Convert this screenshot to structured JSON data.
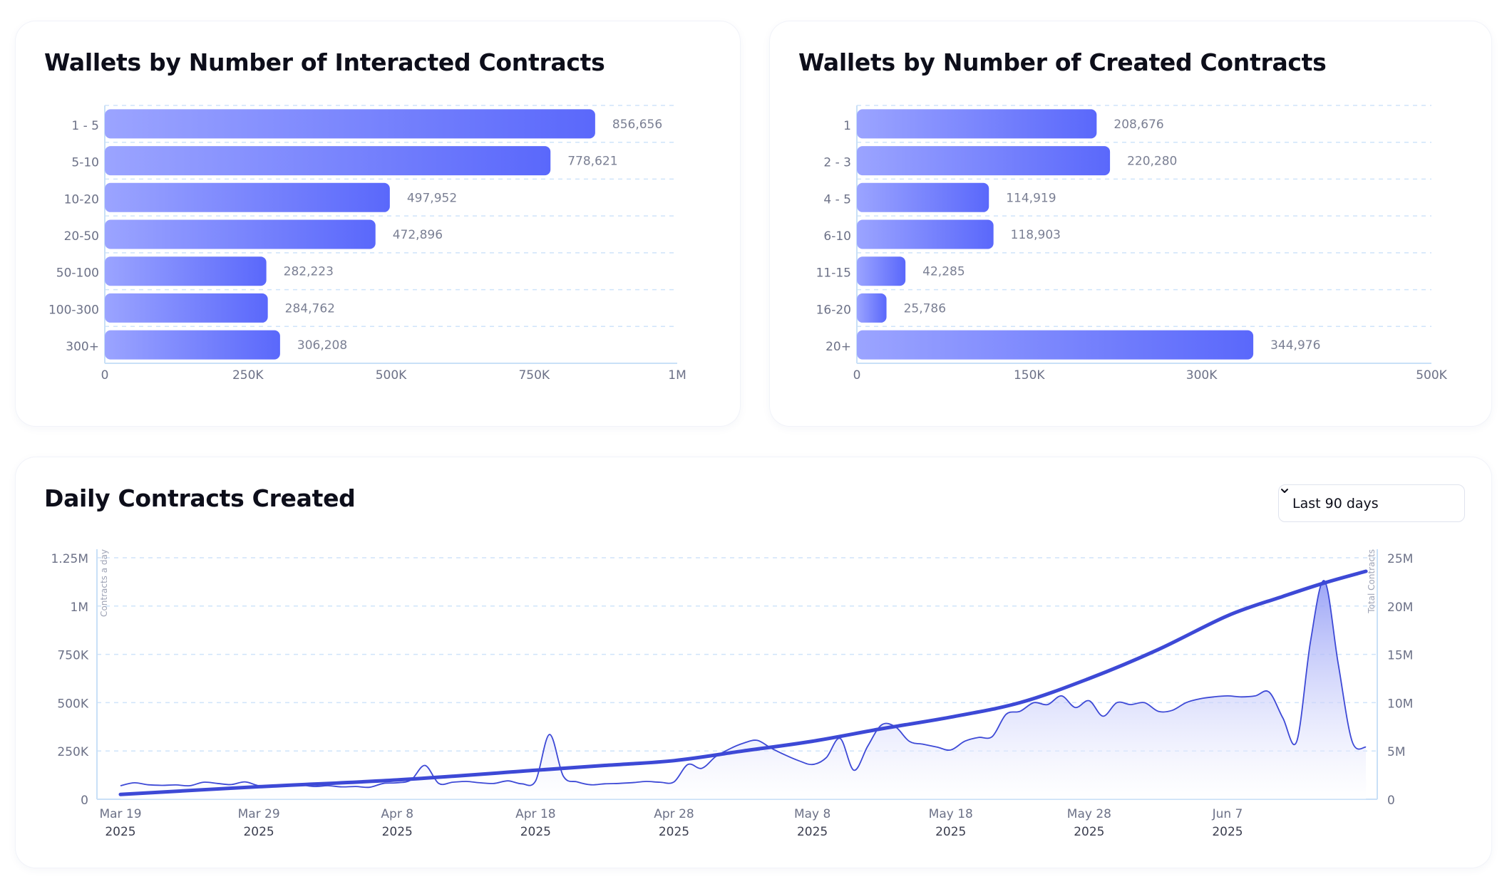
{
  "colors": {
    "bar_start": "#9ba4ff",
    "bar_end": "#5a68fb",
    "line": "#3d49d6",
    "area_top": "#8b95f5",
    "grid": "#cfe4fa",
    "axis": "#c9e0f7",
    "tick_text": "#6c7187",
    "value_text": "#7a7f93",
    "title_text": "#0d0e1a"
  },
  "time_range": {
    "selected": "Last 90 days",
    "icon": "chevron-down-icon"
  },
  "chart_data": [
    {
      "id": "interacted",
      "type": "bar",
      "orientation": "horizontal",
      "title": "Wallets by Number of Interacted Contracts",
      "categories": [
        "1 - 5",
        "5-10",
        "10-20",
        "20-50",
        "50-100",
        "100-300",
        "300+"
      ],
      "values": [
        856656,
        778621,
        497952,
        472896,
        282223,
        284762,
        306208
      ],
      "value_labels": [
        "856,656",
        "778,621",
        "497,952",
        "472,896",
        "282,223",
        "284,762",
        "306,208"
      ],
      "xlim": [
        0,
        1000000
      ],
      "x_ticks": [
        0,
        250000,
        500000,
        750000,
        1000000
      ],
      "x_tick_labels": [
        "0",
        "250K",
        "500K",
        "750K",
        "1M"
      ],
      "grid": true,
      "legend": "none"
    },
    {
      "id": "created",
      "type": "bar",
      "orientation": "horizontal",
      "title": "Wallets by Number of Created Contracts",
      "categories": [
        "1",
        "2 - 3",
        "4 - 5",
        "6-10",
        "11-15",
        "16-20",
        "20+"
      ],
      "values": [
        208676,
        220280,
        114919,
        118903,
        42285,
        25786,
        344976
      ],
      "value_labels": [
        "208,676",
        "220,280",
        "114,919",
        "118,903",
        "42,285",
        "25,786",
        "344,976"
      ],
      "xlim": [
        0,
        500000
      ],
      "x_ticks": [
        0,
        150000,
        300000,
        500000
      ],
      "x_tick_labels": [
        "0",
        "150K",
        "300K",
        "500K"
      ],
      "grid": true,
      "legend": "none"
    },
    {
      "id": "daily",
      "type": "area",
      "title": "Daily Contracts Created",
      "x_start": "2025-03-19",
      "x_end": "2025-06-17",
      "x_ticks": [
        "2025-03-19",
        "2025-03-29",
        "2025-04-08",
        "2025-04-18",
        "2025-04-28",
        "2025-05-08",
        "2025-05-18",
        "2025-05-28",
        "2025-06-07"
      ],
      "x_tick_labels": [
        "Mar 19",
        "Mar 29",
        "Apr 8",
        "Apr 18",
        "Apr 28",
        "May 8",
        "May 18",
        "May 28",
        "Jun 7"
      ],
      "x_tick_sublabels": [
        "2025",
        "2025",
        "2025",
        "2025",
        "2025",
        "2025",
        "2025",
        "2025",
        "2025"
      ],
      "y_left": {
        "label": "Contracts a day",
        "lim": [
          0,
          1250000
        ],
        "ticks": [
          0,
          250000,
          500000,
          750000,
          1000000,
          1250000
        ],
        "tick_labels": [
          "0",
          "250K",
          "500K",
          "750K",
          "1M",
          "1.25M"
        ]
      },
      "y_right": {
        "label": "Total Contracts",
        "lim": [
          0,
          25000000
        ],
        "ticks": [
          0,
          5000000,
          10000000,
          15000000,
          20000000,
          25000000
        ],
        "tick_labels": [
          "0",
          "5M",
          "10M",
          "15M",
          "20M",
          "25M"
        ]
      },
      "grid": true,
      "legend": "none",
      "series": [
        {
          "axis": "left",
          "kind": "area",
          "points": [
            [
              "2025-03-19",
              70000
            ],
            [
              "2025-03-20",
              85000
            ],
            [
              "2025-03-21",
              75000
            ],
            [
              "2025-03-22",
              72000
            ],
            [
              "2025-03-23",
              74000
            ],
            [
              "2025-03-24",
              70000
            ],
            [
              "2025-03-25",
              88000
            ],
            [
              "2025-03-26",
              82000
            ],
            [
              "2025-03-27",
              76000
            ],
            [
              "2025-03-28",
              90000
            ],
            [
              "2025-03-29",
              70000
            ],
            [
              "2025-03-30",
              68000
            ],
            [
              "2025-03-31",
              72000
            ],
            [
              "2025-04-01",
              74000
            ],
            [
              "2025-04-02",
              66000
            ],
            [
              "2025-04-03",
              70000
            ],
            [
              "2025-04-04",
              64000
            ],
            [
              "2025-04-05",
              66000
            ],
            [
              "2025-04-06",
              62000
            ],
            [
              "2025-04-07",
              82000
            ],
            [
              "2025-04-08",
              85000
            ],
            [
              "2025-04-09",
              100000
            ],
            [
              "2025-04-10",
              175000
            ],
            [
              "2025-04-11",
              82000
            ],
            [
              "2025-04-12",
              88000
            ],
            [
              "2025-04-13",
              92000
            ],
            [
              "2025-04-14",
              85000
            ],
            [
              "2025-04-15",
              82000
            ],
            [
              "2025-04-16",
              95000
            ],
            [
              "2025-04-17",
              80000
            ],
            [
              "2025-04-18",
              95000
            ],
            [
              "2025-04-19",
              335000
            ],
            [
              "2025-04-20",
              120000
            ],
            [
              "2025-04-21",
              90000
            ],
            [
              "2025-04-22",
              75000
            ],
            [
              "2025-04-23",
              80000
            ],
            [
              "2025-04-24",
              82000
            ],
            [
              "2025-04-25",
              86000
            ],
            [
              "2025-04-26",
              92000
            ],
            [
              "2025-04-27",
              88000
            ],
            [
              "2025-04-28",
              90000
            ],
            [
              "2025-04-29",
              180000
            ],
            [
              "2025-04-30",
              160000
            ],
            [
              "2025-05-01",
              220000
            ],
            [
              "2025-05-02",
              260000
            ],
            [
              "2025-05-03",
              290000
            ],
            [
              "2025-05-04",
              305000
            ],
            [
              "2025-05-05",
              265000
            ],
            [
              "2025-05-06",
              230000
            ],
            [
              "2025-05-07",
              200000
            ],
            [
              "2025-05-08",
              180000
            ],
            [
              "2025-05-09",
              215000
            ],
            [
              "2025-05-10",
              315000
            ],
            [
              "2025-05-11",
              150000
            ],
            [
              "2025-05-12",
              275000
            ],
            [
              "2025-05-13",
              385000
            ],
            [
              "2025-05-14",
              375000
            ],
            [
              "2025-05-15",
              300000
            ],
            [
              "2025-05-16",
              285000
            ],
            [
              "2025-05-17",
              270000
            ],
            [
              "2025-05-18",
              255000
            ],
            [
              "2025-05-19",
              300000
            ],
            [
              "2025-05-20",
              320000
            ],
            [
              "2025-05-21",
              325000
            ],
            [
              "2025-05-22",
              440000
            ],
            [
              "2025-05-23",
              455000
            ],
            [
              "2025-05-24",
              500000
            ],
            [
              "2025-05-25",
              490000
            ],
            [
              "2025-05-26",
              535000
            ],
            [
              "2025-05-27",
              475000
            ],
            [
              "2025-05-28",
              510000
            ],
            [
              "2025-05-29",
              430000
            ],
            [
              "2025-05-30",
              500000
            ],
            [
              "2025-05-31",
              490000
            ],
            [
              "2025-06-01",
              500000
            ],
            [
              "2025-06-02",
              455000
            ],
            [
              "2025-06-03",
              460000
            ],
            [
              "2025-06-04",
              500000
            ],
            [
              "2025-06-05",
              520000
            ],
            [
              "2025-06-06",
              530000
            ],
            [
              "2025-06-07",
              535000
            ],
            [
              "2025-06-08",
              530000
            ],
            [
              "2025-06-09",
              535000
            ],
            [
              "2025-06-10",
              555000
            ],
            [
              "2025-06-11",
              420000
            ],
            [
              "2025-06-12",
              300000
            ],
            [
              "2025-06-13",
              820000
            ],
            [
              "2025-06-14",
              1130000
            ],
            [
              "2025-06-15",
              700000
            ],
            [
              "2025-06-16",
              300000
            ],
            [
              "2025-06-17",
              270000
            ]
          ]
        },
        {
          "axis": "right",
          "kind": "line",
          "points": [
            [
              "2025-03-19",
              500000
            ],
            [
              "2025-03-29",
              1300000
            ],
            [
              "2025-04-08",
              2000000
            ],
            [
              "2025-04-18",
              3000000
            ],
            [
              "2025-04-23",
              3500000
            ],
            [
              "2025-04-28",
              4000000
            ],
            [
              "2025-05-03",
              5000000
            ],
            [
              "2025-05-08",
              6000000
            ],
            [
              "2025-05-13",
              7300000
            ],
            [
              "2025-05-18",
              8500000
            ],
            [
              "2025-05-23",
              10000000
            ],
            [
              "2025-05-28",
              12500000
            ],
            [
              "2025-06-02",
              15500000
            ],
            [
              "2025-06-07",
              19000000
            ],
            [
              "2025-06-11",
              21000000
            ],
            [
              "2025-06-14",
              22400000
            ],
            [
              "2025-06-17",
              23600000
            ]
          ]
        }
      ]
    }
  ]
}
